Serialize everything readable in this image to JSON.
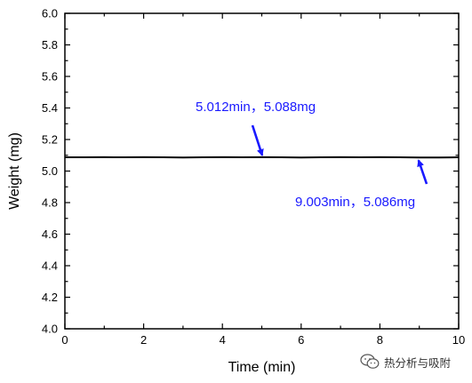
{
  "chart_data": {
    "type": "line",
    "xlabel": "Time (min)",
    "ylabel": "Weight (mg)",
    "xlim": [
      0,
      10
    ],
    "ylim": [
      4.0,
      6.0
    ],
    "x_ticks": [
      "0",
      "2",
      "4",
      "6",
      "8",
      "10"
    ],
    "y_ticks": [
      "4.0",
      "4.2",
      "4.4",
      "4.6",
      "4.8",
      "5.0",
      "5.2",
      "5.4",
      "5.6",
      "5.8",
      "6.0"
    ],
    "series": [
      {
        "color": "#000000",
        "x": [
          0,
          0.5,
          1,
          1.5,
          2,
          2.5,
          3,
          3.5,
          4,
          4.5,
          5.012,
          5.5,
          6,
          6.5,
          7,
          7.5,
          8,
          8.5,
          9.003,
          9.5,
          10
        ],
        "y": [
          5.087,
          5.087,
          5.088,
          5.087,
          5.088,
          5.087,
          5.086,
          5.087,
          5.088,
          5.087,
          5.088,
          5.087,
          5.086,
          5.087,
          5.088,
          5.087,
          5.088,
          5.087,
          5.086,
          5.086,
          5.087
        ]
      }
    ],
    "annotations": [
      {
        "text": "5.012min，5.088mg",
        "x": 5.012,
        "y": 5.088,
        "color": "#1a1aff"
      },
      {
        "text": "9.003min，5.086mg",
        "x": 9.003,
        "y": 5.086,
        "color": "#1a1aff"
      }
    ],
    "grid": false
  },
  "watermark": {
    "text": "热分析与吸附",
    "icon": "wechat-icon"
  }
}
